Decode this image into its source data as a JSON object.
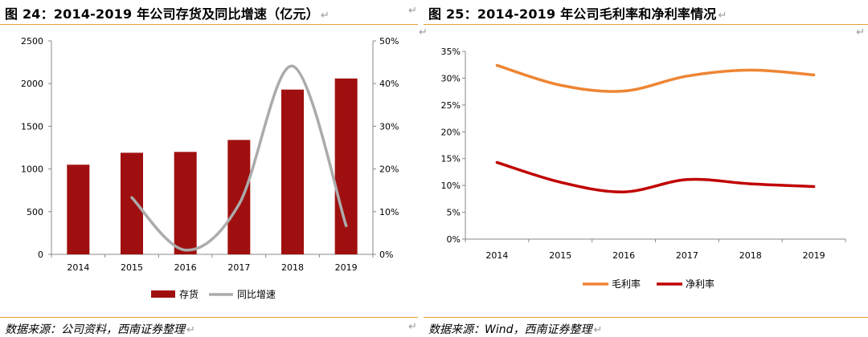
{
  "left": {
    "title": "图 24：2014-2019 年公司存货及同比增速（亿元）",
    "source": "数据来源：公司资料，西南证券整理",
    "legend": {
      "bar": "存货",
      "line": "同比增速"
    }
  },
  "right": {
    "title": "图 25：2014-2019 年公司毛利率和净利率情况",
    "source": "数据来源：Wind，西南证券整理",
    "legend": {
      "gross": "毛利率",
      "net": "净利率"
    }
  },
  "return_mark": "↵",
  "colors": {
    "bar": "#a00f0f",
    "growth_line": "#ababab",
    "gross": "#ee8533",
    "net": "#c00000",
    "rule": "#e3a12f"
  },
  "chart_data": [
    {
      "type": "bar",
      "title": "图 24：2014-2019 年公司存货及同比增速（亿元）",
      "categories": [
        "2014",
        "2015",
        "2016",
        "2017",
        "2018",
        "2019"
      ],
      "y_ticks": [
        "0",
        "500",
        "1000",
        "1500",
        "2000",
        "2500"
      ],
      "y2_ticks": [
        "0%",
        "10%",
        "20%",
        "30%",
        "40%",
        "50%"
      ],
      "ylim": [
        0,
        2500
      ],
      "y2lim": [
        0,
        50
      ],
      "series": [
        {
          "name": "存货",
          "type": "bar",
          "axis": "left",
          "values": [
            1050,
            1190,
            1200,
            1340,
            1930,
            2060
          ]
        },
        {
          "name": "同比增速",
          "type": "line",
          "axis": "right",
          "smooth": true,
          "values": [
            null,
            13.3,
            1.0,
            11.7,
            44.1,
            6.7
          ]
        }
      ],
      "legend_position": "bottom"
    },
    {
      "type": "line",
      "title": "图 25：2014-2019 年公司毛利率和净利率情况",
      "categories": [
        "2014",
        "2015",
        "2016",
        "2017",
        "2018",
        "2019"
      ],
      "y_ticks": [
        "0%",
        "5%",
        "10%",
        "15%",
        "20%",
        "25%",
        "30%",
        "35%"
      ],
      "ylim": [
        0,
        35
      ],
      "series": [
        {
          "name": "毛利率",
          "smooth": true,
          "values": [
            32.4,
            28.7,
            27.6,
            30.4,
            31.5,
            30.6
          ]
        },
        {
          "name": "净利率",
          "smooth": true,
          "values": [
            14.3,
            10.6,
            8.8,
            11.1,
            10.3,
            9.8
          ]
        }
      ],
      "legend_position": "bottom"
    }
  ]
}
